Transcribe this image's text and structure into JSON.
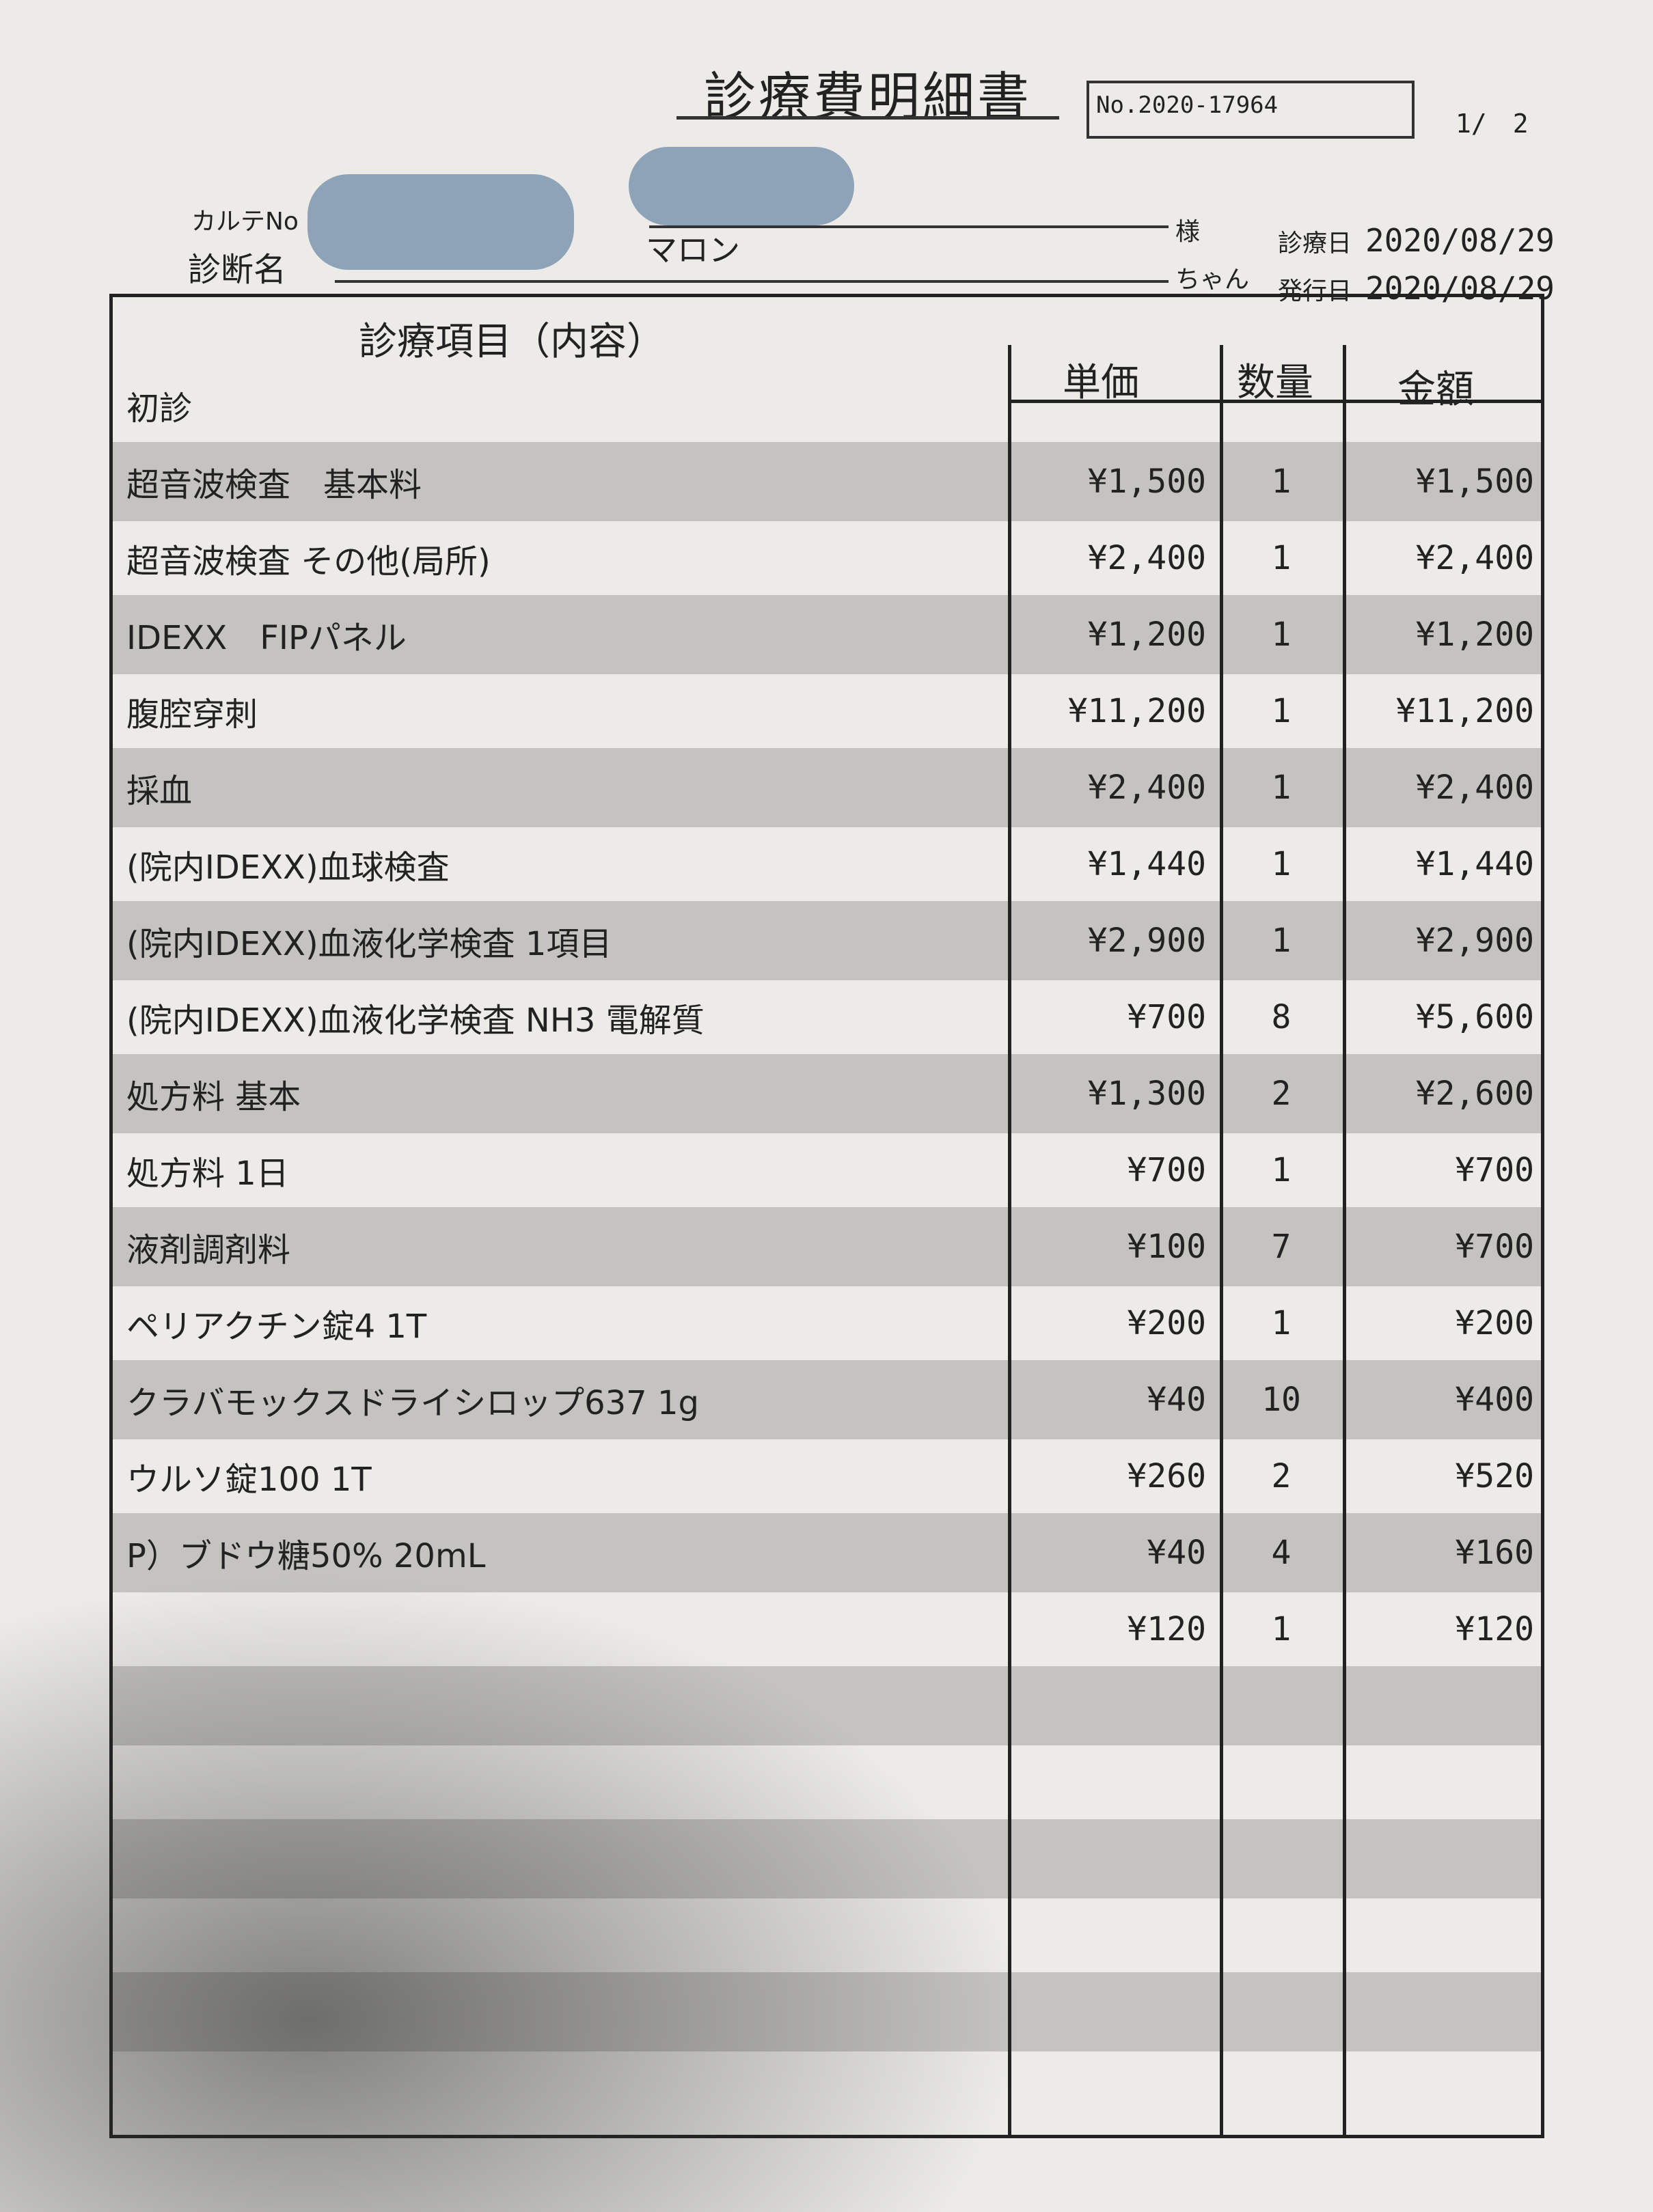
{
  "header": {
    "title": "診療費明細書",
    "number": "No.2020-17964",
    "page": "1/　2",
    "karte_label": "カルテNo",
    "diagnosis_label": "診断名",
    "pet_name": "マロン",
    "owner_suffix": "様",
    "pet_suffix": "ちゃん",
    "visit_date_label": "診療日",
    "visit_date": "2020/08/29",
    "issue_date_label": "発行日",
    "issue_date": "2020/08/29"
  },
  "table": {
    "columns": [
      "診療項目（内容）",
      "単価",
      "数量",
      "金額"
    ],
    "rows": [
      {
        "item": "初診",
        "unit": "",
        "qty": "",
        "amount": ""
      },
      {
        "item": "超音波検査　基本料",
        "unit": "¥1,500",
        "qty": "1",
        "amount": "¥1,500"
      },
      {
        "item": "超音波検査 その他(局所)",
        "unit": "¥2,400",
        "qty": "1",
        "amount": "¥2,400"
      },
      {
        "item": "IDEXX　FIPパネル",
        "unit": "¥1,200",
        "qty": "1",
        "amount": "¥1,200"
      },
      {
        "item": "腹腔穿刺",
        "unit": "¥11,200",
        "qty": "1",
        "amount": "¥11,200"
      },
      {
        "item": "採血",
        "unit": "¥2,400",
        "qty": "1",
        "amount": "¥2,400"
      },
      {
        "item": "(院内IDEXX)血球検査",
        "unit": "¥1,440",
        "qty": "1",
        "amount": "¥1,440"
      },
      {
        "item": "(院内IDEXX)血液化学検査 1項目",
        "unit": "¥2,900",
        "qty": "1",
        "amount": "¥2,900"
      },
      {
        "item": "(院内IDEXX)血液化学検査 NH3 電解質",
        "unit": "¥700",
        "qty": "8",
        "amount": "¥5,600"
      },
      {
        "item": "処方料 基本",
        "unit": "¥1,300",
        "qty": "2",
        "amount": "¥2,600"
      },
      {
        "item": "処方料 1日",
        "unit": "¥700",
        "qty": "1",
        "amount": "¥700"
      },
      {
        "item": "液剤調剤料",
        "unit": "¥100",
        "qty": "7",
        "amount": "¥700"
      },
      {
        "item": "ペリアクチン錠4 1T",
        "unit": "¥200",
        "qty": "1",
        "amount": "¥200"
      },
      {
        "item": "クラバモックスドライシロップ637 1g",
        "unit": "¥40",
        "qty": "10",
        "amount": "¥400"
      },
      {
        "item": "ウルソ錠100 1T",
        "unit": "¥260",
        "qty": "2",
        "amount": "¥520"
      },
      {
        "item": "P）ブドウ糖50% 20mL",
        "unit": "¥40",
        "qty": "4",
        "amount": "¥160"
      },
      {
        "item": "",
        "unit": "¥120",
        "qty": "1",
        "amount": "¥120"
      }
    ]
  }
}
